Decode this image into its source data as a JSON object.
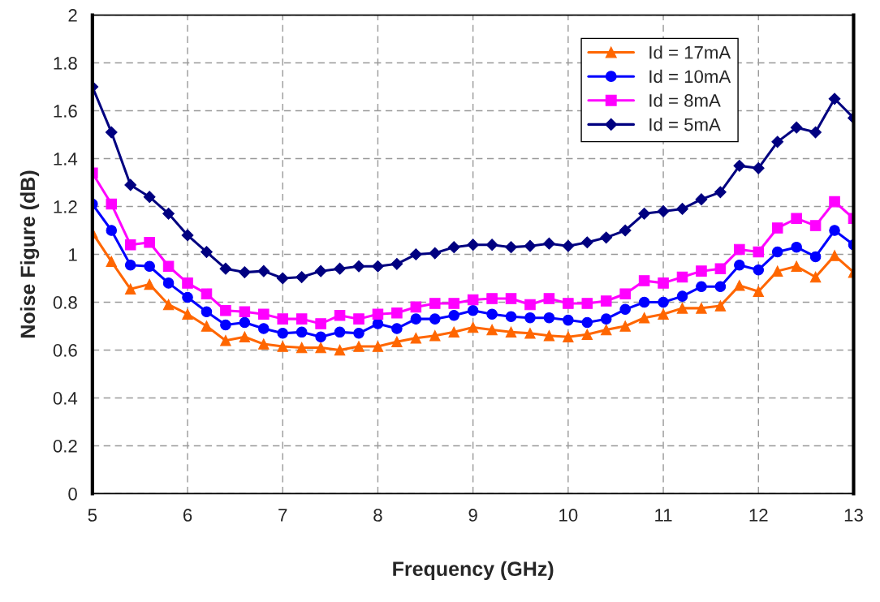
{
  "chart_data": {
    "type": "line",
    "xlabel": "Frequency (GHz)",
    "ylabel": "Noise Figure (dB)",
    "x": [
      5,
      5.2,
      5.4,
      5.6,
      5.8,
      6,
      6.2,
      6.4,
      6.6,
      6.8,
      7,
      7.2,
      7.4,
      7.6,
      7.8,
      8,
      8.2,
      8.4,
      8.6,
      8.8,
      9,
      9.2,
      9.4,
      9.6,
      9.8,
      10,
      10.2,
      10.4,
      10.6,
      10.8,
      11,
      11.2,
      11.4,
      11.6,
      11.8,
      12,
      12.2,
      12.4,
      12.6,
      12.8,
      13
    ],
    "series": [
      {
        "name": "Id = 17mA",
        "color": "#ff6600",
        "marker": "triangle",
        "values": [
          1.09,
          0.97,
          0.855,
          0.875,
          0.79,
          0.75,
          0.7,
          0.64,
          0.655,
          0.625,
          0.615,
          0.61,
          0.61,
          0.6,
          0.615,
          0.615,
          0.635,
          0.65,
          0.66,
          0.675,
          0.695,
          0.685,
          0.675,
          0.67,
          0.66,
          0.655,
          0.665,
          0.685,
          0.7,
          0.735,
          0.75,
          0.775,
          0.775,
          0.785,
          0.87,
          0.845,
          0.93,
          0.95,
          0.905,
          0.995,
          0.925
        ]
      },
      {
        "name": "Id = 10mA",
        "color": "#0000ff",
        "marker": "circle",
        "values": [
          1.21,
          1.1,
          0.955,
          0.95,
          0.88,
          0.82,
          0.76,
          0.705,
          0.715,
          0.69,
          0.67,
          0.675,
          0.655,
          0.675,
          0.67,
          0.71,
          0.69,
          0.73,
          0.73,
          0.745,
          0.765,
          0.75,
          0.74,
          0.735,
          0.735,
          0.725,
          0.715,
          0.73,
          0.77,
          0.8,
          0.8,
          0.825,
          0.865,
          0.865,
          0.955,
          0.935,
          1.01,
          1.03,
          0.99,
          1.1,
          1.04
        ]
      },
      {
        "name": "Id = 8mA",
        "color": "#ff00ff",
        "marker": "square",
        "values": [
          1.34,
          1.21,
          1.04,
          1.05,
          0.95,
          0.88,
          0.835,
          0.765,
          0.76,
          0.75,
          0.73,
          0.73,
          0.71,
          0.745,
          0.73,
          0.75,
          0.755,
          0.78,
          0.795,
          0.795,
          0.81,
          0.815,
          0.815,
          0.79,
          0.815,
          0.795,
          0.795,
          0.805,
          0.835,
          0.89,
          0.88,
          0.905,
          0.93,
          0.94,
          1.02,
          1.01,
          1.11,
          1.15,
          1.12,
          1.22,
          1.15
        ]
      },
      {
        "name": "Id = 5mA",
        "color": "#000080",
        "marker": "diamond",
        "values": [
          1.7,
          1.51,
          1.29,
          1.24,
          1.17,
          1.08,
          1.01,
          0.94,
          0.925,
          0.93,
          0.9,
          0.905,
          0.93,
          0.94,
          0.95,
          0.95,
          0.96,
          1.0,
          1.005,
          1.03,
          1.04,
          1.04,
          1.03,
          1.035,
          1.045,
          1.035,
          1.05,
          1.07,
          1.1,
          1.17,
          1.18,
          1.19,
          1.23,
          1.26,
          1.37,
          1.36,
          1.47,
          1.53,
          1.51,
          1.65,
          1.57
        ]
      }
    ],
    "xlim": [
      5,
      13
    ],
    "xticks": [
      5,
      6,
      7,
      8,
      9,
      10,
      11,
      12,
      13
    ],
    "ylim": [
      0,
      2
    ],
    "yticks": [
      0,
      {
        "value": 0.2,
        "label": "0.2"
      },
      {
        "value": 0.4,
        "label": "0.4"
      },
      {
        "value": 0.6,
        "label": "0.6"
      },
      {
        "value": 0.8,
        "label": "0.8"
      },
      1,
      {
        "value": 1.2,
        "label": "1.2"
      },
      {
        "value": 1.4,
        "label": "1.4"
      },
      {
        "value": 1.6,
        "label": "1.6"
      },
      {
        "value": 1.8,
        "label": "1.8"
      },
      2
    ],
    "grid": true,
    "legend": "top right",
    "line_style": "solid"
  }
}
